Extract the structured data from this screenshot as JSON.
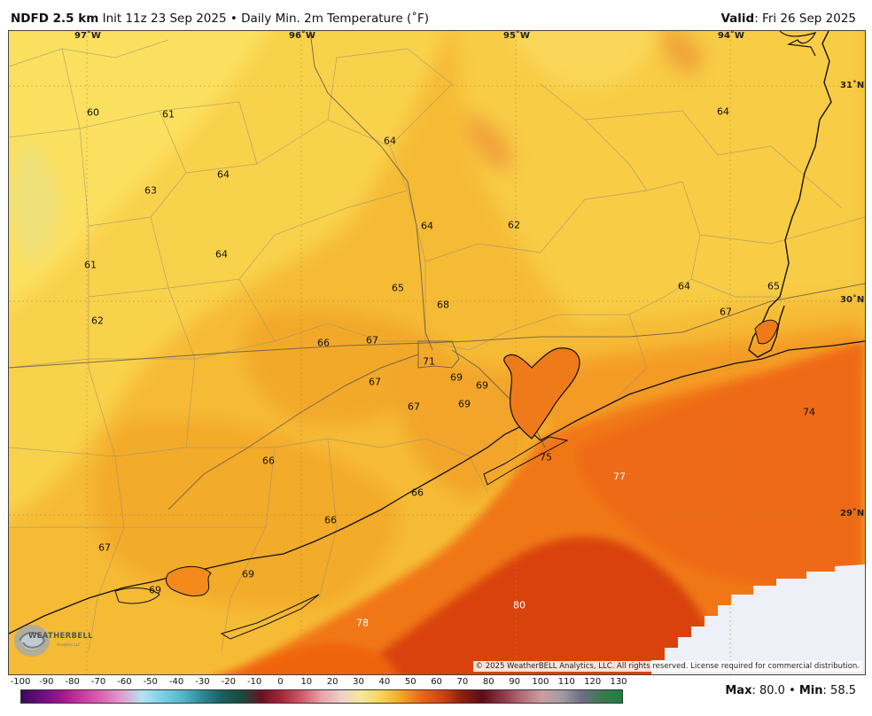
{
  "header": {
    "title_bold": "NDFD 2.5 km",
    "title_rest": " Init 11z 23 Sep 2025 • Daily Min. 2m Temperature (˚F)",
    "valid_label": "Valid",
    "valid_value": ": Fri 26 Sep 2025"
  },
  "map": {
    "region": "Southeast Texas / Upper Texas Coast",
    "longitude_labels": [
      "97˚W",
      "96˚W",
      "95˚W",
      "94˚W"
    ],
    "latitude_labels": [
      "31˚N",
      "30˚N",
      "29˚N"
    ],
    "temperature_labels": [
      {
        "value": "60",
        "text_color": "dark"
      },
      {
        "value": "61",
        "text_color": "dark"
      },
      {
        "value": "64",
        "text_color": "dark"
      },
      {
        "value": "64",
        "text_color": "dark"
      },
      {
        "value": "63",
        "text_color": "dark"
      },
      {
        "value": "64",
        "text_color": "dark"
      },
      {
        "value": "62",
        "text_color": "dark"
      },
      {
        "value": "64",
        "text_color": "dark"
      },
      {
        "value": "61",
        "text_color": "dark"
      },
      {
        "value": "64",
        "text_color": "dark"
      },
      {
        "value": "65",
        "text_color": "dark"
      },
      {
        "value": "68",
        "text_color": "dark"
      },
      {
        "value": "64",
        "text_color": "dark"
      },
      {
        "value": "65",
        "text_color": "dark"
      },
      {
        "value": "67",
        "text_color": "dark"
      },
      {
        "value": "62",
        "text_color": "dark"
      },
      {
        "value": "66",
        "text_color": "dark"
      },
      {
        "value": "67",
        "text_color": "dark"
      },
      {
        "value": "71",
        "text_color": "dark"
      },
      {
        "value": "67",
        "text_color": "dark"
      },
      {
        "value": "69",
        "text_color": "dark"
      },
      {
        "value": "69",
        "text_color": "dark"
      },
      {
        "value": "67",
        "text_color": "dark"
      },
      {
        "value": "69",
        "text_color": "dark"
      },
      {
        "value": "74",
        "text_color": "dark"
      },
      {
        "value": "75",
        "text_color": "dark"
      },
      {
        "value": "66",
        "text_color": "dark"
      },
      {
        "value": "77",
        "text_color": "white"
      },
      {
        "value": "66",
        "text_color": "dark"
      },
      {
        "value": "66",
        "text_color": "dark"
      },
      {
        "value": "67",
        "text_color": "dark"
      },
      {
        "value": "69",
        "text_color": "dark"
      },
      {
        "value": "69",
        "text_color": "dark"
      },
      {
        "value": "80",
        "text_color": "white"
      },
      {
        "value": "78",
        "text_color": "white"
      }
    ],
    "copyright": "© 2025 WeatherBELL Analytics, LLC. All rights reserved. License required for commercial distribution.",
    "logo_text": "WEATHERBELL",
    "logo_subtext": "Analytics LLC"
  },
  "colorbar": {
    "tick_labels": [
      "-100",
      "-90",
      "-80",
      "-70",
      "-60",
      "-50",
      "-40",
      "-30",
      "-20",
      "-10",
      "0",
      "10",
      "20",
      "30",
      "40",
      "50",
      "60",
      "70",
      "80",
      "90",
      "100",
      "110",
      "120",
      "130"
    ],
    "stops": [
      "#3a0a5c",
      "#6a0e7e",
      "#a0168f",
      "#c8399f",
      "#d864b4",
      "#e39ccf",
      "#b5e3ef",
      "#7ed0e8",
      "#56b8c9",
      "#2e8a9a",
      "#1b5f5f",
      "#174a3f",
      "#6b1022",
      "#a4283a",
      "#d0596a",
      "#e6a3a8",
      "#f0d0c8",
      "#f4e89a",
      "#f7d355",
      "#f2a621",
      "#e9651b",
      "#d04512",
      "#8e1f10",
      "#5b0d17",
      "#8a3644",
      "#b46c74",
      "#c99ea3",
      "#a39aa1",
      "#6f6e85",
      "#3a7a4d",
      "#16823f"
    ]
  },
  "stats": {
    "max_label": "Max",
    "max_value": ": 80.0",
    "separator": " • ",
    "min_label": "Min",
    "min_value": ": 58.5"
  }
}
